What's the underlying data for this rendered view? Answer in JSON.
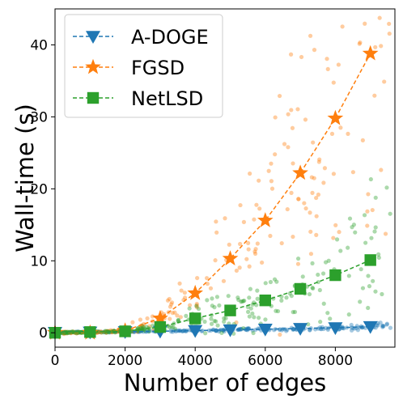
{
  "chart_data": {
    "type": "scatter",
    "title": "",
    "xlabel": "Number of edges",
    "ylabel": "Wall-time (s)",
    "xlim": [
      0,
      9700
    ],
    "ylim": [
      -2,
      45
    ],
    "x_ticks": [
      0,
      2000,
      4000,
      6000,
      8000
    ],
    "x_tick_labels": [
      "0",
      "2000",
      "4000",
      "6000",
      "8000"
    ],
    "y_ticks": [
      0,
      10,
      20,
      30,
      40
    ],
    "y_tick_labels": [
      "0",
      "10",
      "20",
      "30",
      "40"
    ],
    "grid": false,
    "legend_position": "upper-left",
    "series": [
      {
        "name": "A-DOGE",
        "color": "#1f77b4",
        "marker": "triangle-down",
        "line_x": [
          0,
          1000,
          2000,
          3000,
          4000,
          5000,
          6000,
          7000,
          8000,
          9000
        ],
        "line_y": [
          0.05,
          0.1,
          0.15,
          0.2,
          0.3,
          0.4,
          0.5,
          0.6,
          0.7,
          0.85
        ]
      },
      {
        "name": "FGSD",
        "color": "#ff7f0e",
        "marker": "star",
        "line_x": [
          0,
          1000,
          2000,
          3000,
          4000,
          5000,
          6000,
          7000,
          8000,
          9000
        ],
        "line_y": [
          0.0,
          0.0,
          0.3,
          2.0,
          5.5,
          10.3,
          15.6,
          22.2,
          29.8,
          38.8
        ]
      },
      {
        "name": "NetLSD",
        "color": "#2ca02c",
        "marker": "square",
        "line_x": [
          0,
          1000,
          2000,
          3000,
          4000,
          5000,
          6000,
          7000,
          8000,
          9000
        ],
        "line_y": [
          0.0,
          0.1,
          0.2,
          0.8,
          2.0,
          3.1,
          4.5,
          6.1,
          8.0,
          10.1
        ]
      }
    ]
  }
}
